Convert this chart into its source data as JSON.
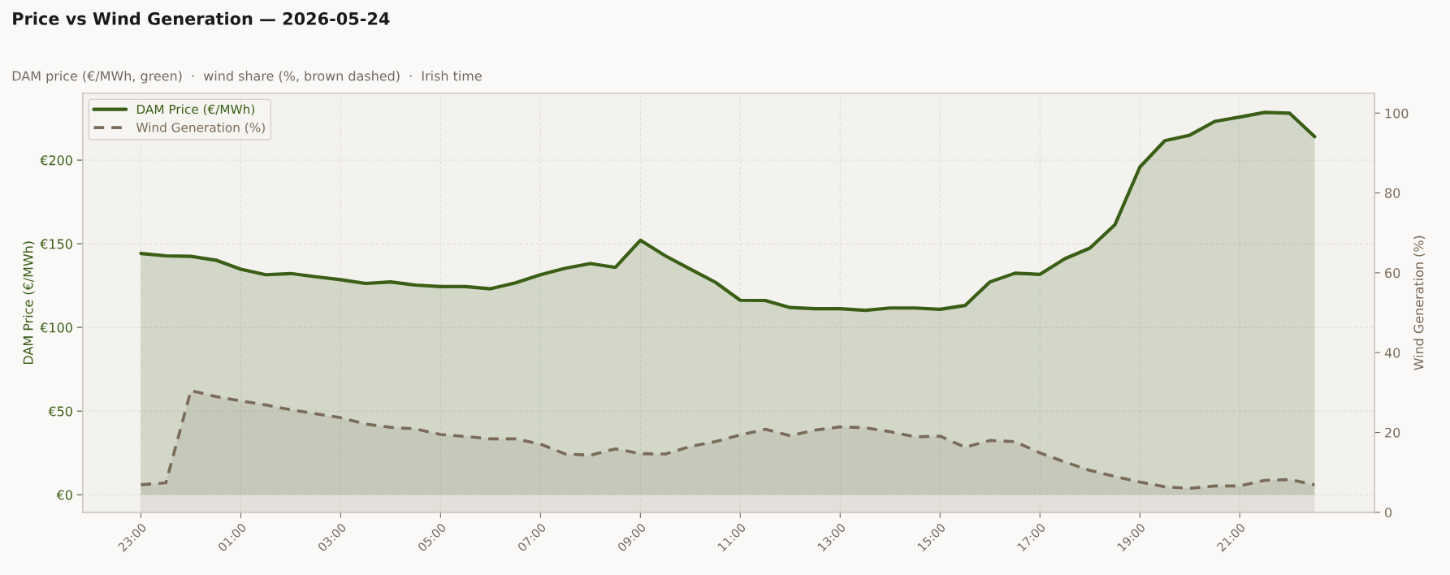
{
  "chart_data": {
    "type": "area",
    "title": "Price vs Wind Generation — 2026-05-24",
    "subtitle": "DAM price (€/MWh, green)  ·  wind share (%, brown dashed)  ·  Irish time",
    "ylabel": "DAM Price (€/MWh)",
    "y2label": "Wind Generation (%)",
    "x": [
      "2026-05-23T23:00",
      "2026-05-23T23:30",
      "2026-05-24T00:00",
      "2026-05-24T00:30",
      "2026-05-24T01:00",
      "2026-05-24T01:30",
      "2026-05-24T02:00",
      "2026-05-24T02:30",
      "2026-05-24T03:00",
      "2026-05-24T03:30",
      "2026-05-24T04:00",
      "2026-05-24T04:30",
      "2026-05-24T05:00",
      "2026-05-24T05:30",
      "2026-05-24T06:00",
      "2026-05-24T06:30",
      "2026-05-24T07:00",
      "2026-05-24T07:30",
      "2026-05-24T08:00",
      "2026-05-24T08:30",
      "2026-05-24T09:00",
      "2026-05-24T09:30",
      "2026-05-24T10:00",
      "2026-05-24T10:30",
      "2026-05-24T11:00",
      "2026-05-24T11:30",
      "2026-05-24T12:00",
      "2026-05-24T12:30",
      "2026-05-24T13:00",
      "2026-05-24T13:30",
      "2026-05-24T14:00",
      "2026-05-24T14:30",
      "2026-05-24T15:00",
      "2026-05-24T15:30",
      "2026-05-24T16:00",
      "2026-05-24T16:30",
      "2026-05-24T17:00",
      "2026-05-24T17:30",
      "2026-05-24T18:00",
      "2026-05-24T18:30",
      "2026-05-24T19:00",
      "2026-05-24T19:30",
      "2026-05-24T20:00",
      "2026-05-24T20:30",
      "2026-05-24T21:00",
      "2026-05-24T21:30",
      "2026-05-24T22:00",
      "2026-05-24T22:30"
    ],
    "series": [
      {
        "name": "DAM Price (€/MWh)",
        "color": "#3b5e17",
        "axis": "y",
        "line_style": "solid",
        "values": [
          144.2,
          142.8,
          142.5,
          140.2,
          134.8,
          131.5,
          132.2,
          130.3,
          128.5,
          126.3,
          127.2,
          125.3,
          124.4,
          124.4,
          123.1,
          126.6,
          131.5,
          135.4,
          138.2,
          135.9,
          152.1,
          142.8,
          134.8,
          127.0,
          116.2,
          116.1,
          111.9,
          111.2,
          111.2,
          110.2,
          111.6,
          111.6,
          110.8,
          113.1,
          127.2,
          132.4,
          131.7,
          141.1,
          147.4,
          161.3,
          195.8,
          211.6,
          214.9,
          223.1,
          225.7,
          228.5,
          228.0,
          214.0
        ]
      },
      {
        "name": "Wind Generation (%)",
        "color": "#7a6a5a",
        "axis": "y2",
        "line_style": "dashed",
        "values": [
          6.9,
          7.4,
          30.5,
          29.0,
          27.9,
          26.9,
          25.7,
          24.7,
          23.7,
          22.1,
          21.3,
          20.9,
          19.5,
          19.0,
          18.4,
          18.4,
          17.1,
          14.6,
          14.3,
          15.9,
          14.7,
          14.6,
          16.5,
          17.7,
          19.4,
          20.8,
          19.2,
          20.6,
          21.4,
          21.2,
          20.2,
          18.9,
          19.1,
          16.3,
          18.0,
          17.7,
          14.9,
          12.6,
          10.5,
          9.0,
          7.6,
          6.4,
          6.0,
          6.6,
          6.6,
          8.0,
          8.2,
          6.9
        ]
      }
    ],
    "xlim": [
      "2026-05-23T21:50",
      "2026-05-24T23:42"
    ],
    "xticks": [
      {
        "value": "2026-05-23T23:00",
        "label": "23:00"
      },
      {
        "value": "2026-05-24T01:00",
        "label": "01:00"
      },
      {
        "value": "2026-05-24T03:00",
        "label": "03:00"
      },
      {
        "value": "2026-05-24T05:00",
        "label": "05:00"
      },
      {
        "value": "2026-05-24T07:00",
        "label": "07:00"
      },
      {
        "value": "2026-05-24T09:00",
        "label": "09:00"
      },
      {
        "value": "2026-05-24T11:00",
        "label": "11:00"
      },
      {
        "value": "2026-05-24T13:00",
        "label": "13:00"
      },
      {
        "value": "2026-05-24T15:00",
        "label": "15:00"
      },
      {
        "value": "2026-05-24T17:00",
        "label": "17:00"
      },
      {
        "value": "2026-05-24T19:00",
        "label": "19:00"
      },
      {
        "value": "2026-05-24T21:00",
        "label": "21:00"
      }
    ],
    "ylim": [
      -10.5,
      240
    ],
    "yticks": [
      {
        "value": 0,
        "label": "€0"
      },
      {
        "value": 50,
        "label": "€50"
      },
      {
        "value": 100,
        "label": "€100"
      },
      {
        "value": 150,
        "label": "€150"
      },
      {
        "value": 200,
        "label": "€200"
      }
    ],
    "y2lim": [
      0,
      105
    ],
    "y2ticks": [
      0,
      20,
      40,
      60,
      80,
      100
    ],
    "grid": true,
    "legend": "top left"
  }
}
